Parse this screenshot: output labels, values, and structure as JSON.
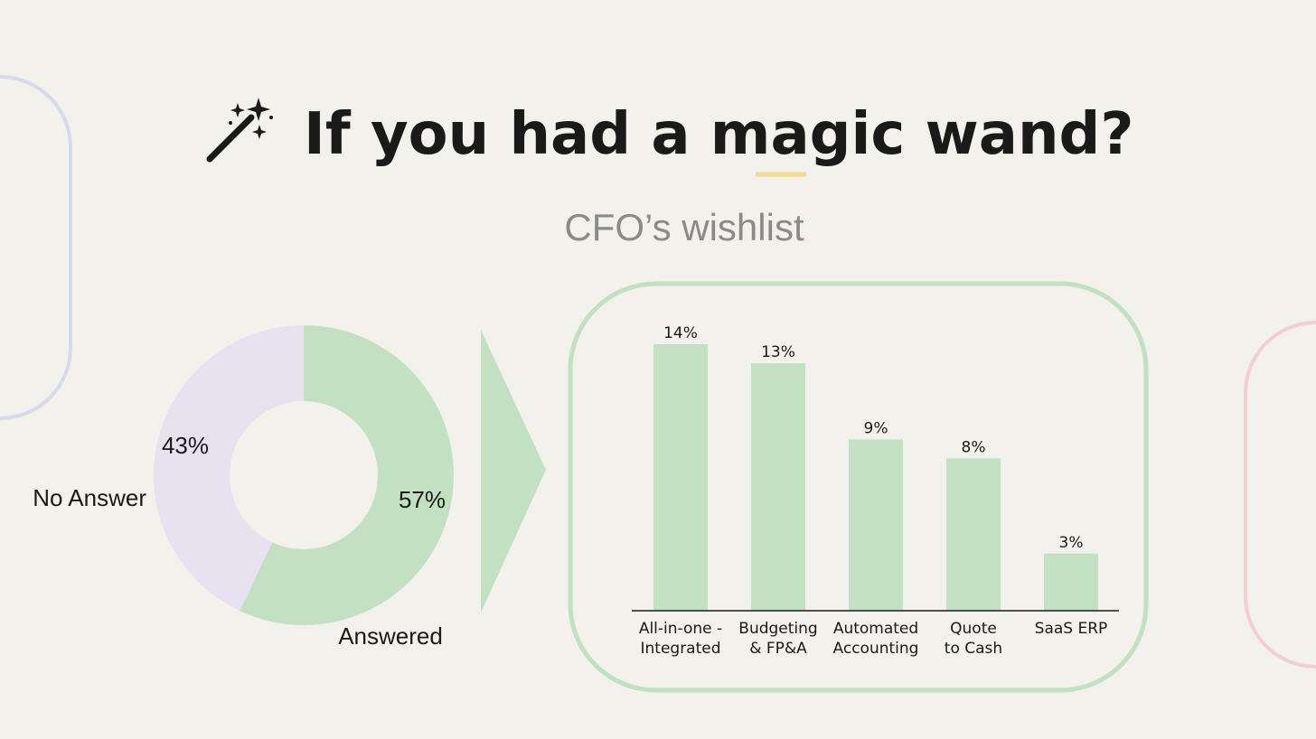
{
  "title": "If you had a magic wand?",
  "subtitle": "CFO’s wishlist",
  "colors": {
    "background": "#f3f1ec",
    "green": "#c2e1c2",
    "lavender": "#e6e2f0",
    "blue_outline": "#d5dbec",
    "pink_outline": "#f4cfd0",
    "underline": "#f6d88e",
    "text": "#1a1a1a",
    "subtitle": "#8a8a8a"
  },
  "icons": {
    "title_icon": "magic-wand-icon"
  },
  "chart_data": [
    {
      "type": "pie",
      "variant": "donut",
      "slices": [
        {
          "label": "Answered",
          "value": 57,
          "value_label": "57%",
          "color": "#c2e1c2"
        },
        {
          "label": "No Answer",
          "value": 43,
          "value_label": "43%",
          "color": "#e6e2f0"
        }
      ]
    },
    {
      "type": "bar",
      "categories": [
        [
          "All-in-one -",
          "Integrated"
        ],
        [
          "Budgeting",
          "& FP&A"
        ],
        [
          "Automated",
          "Accounting"
        ],
        [
          "Quote",
          "to Cash"
        ],
        [
          "SaaS ERP"
        ]
      ],
      "values": [
        14,
        13,
        9,
        8,
        3
      ],
      "value_labels": [
        "14%",
        "13%",
        "9%",
        "8%",
        "3%"
      ],
      "ylim": [
        0,
        14
      ],
      "grid": false,
      "color": "#c2e1c2"
    }
  ]
}
